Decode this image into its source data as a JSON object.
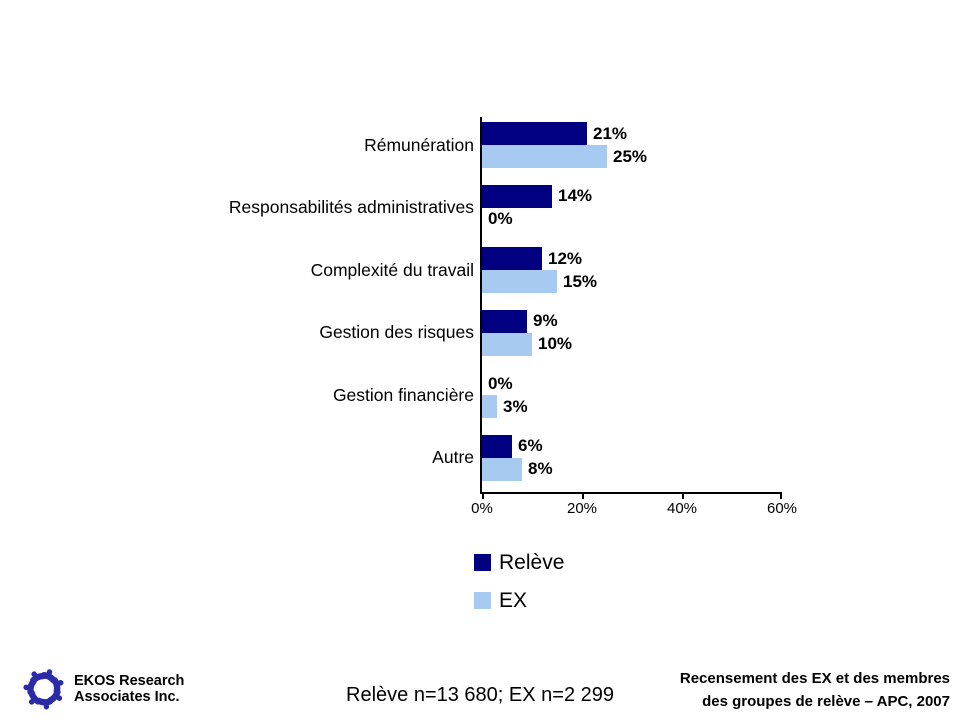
{
  "chart_data": {
    "type": "bar",
    "orientation": "horizontal",
    "title": "",
    "categories": [
      "Rémunération",
      "Responsabilités administratives",
      "Complexité du travail",
      "Gestion des risques",
      "Gestion financière",
      "Autre"
    ],
    "series": [
      {
        "name": "Relève",
        "color": "#000080",
        "values": [
          21,
          14,
          12,
          9,
          0,
          6
        ]
      },
      {
        "name": "EX",
        "color": "#A6CAF0",
        "values": [
          25,
          0,
          15,
          10,
          3,
          8
        ]
      }
    ],
    "value_suffix": "%",
    "xlim": [
      0,
      60
    ],
    "x_ticks": [
      {
        "value": 0,
        "label": "0%"
      },
      {
        "value": 20,
        "label": "20%"
      },
      {
        "value": 40,
        "label": "40%"
      },
      {
        "value": 60,
        "label": "60%"
      }
    ],
    "grid": false,
    "legend_position": "bottom-left"
  },
  "footer": {
    "org_line1": "EKOS Research",
    "org_line2": "Associates Inc.",
    "sample_note": "Relève n=13 680; EX n=2 299",
    "source_line1": "Recensement des EX et des membres",
    "source_line2": "des groupes de relève – APC, 2007"
  },
  "icons": {
    "logo": "ekos-swirl-logo",
    "logo_color": "#2B2BA8"
  }
}
